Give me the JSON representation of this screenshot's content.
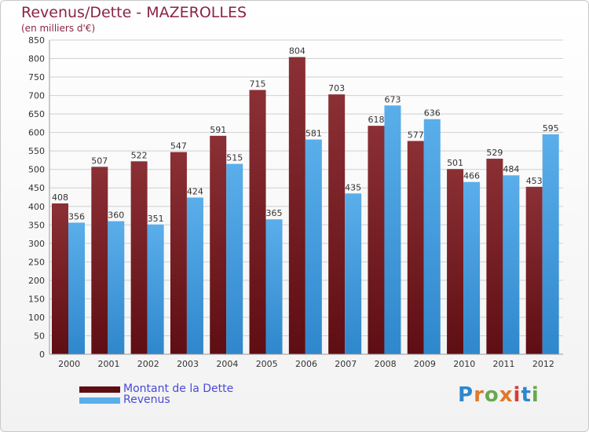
{
  "title": "Revenus/Dette - MAZEROLLES",
  "subtitle": "(en milliers d'€)",
  "brand": "Proxiti",
  "colors": {
    "dette_dark": "#5e0e13",
    "dette_light": "#8b3035",
    "revenus_dark": "#2f87cc",
    "revenus_light": "#5aaeea",
    "grid": "#d0d0d0",
    "axis_text": "#333333",
    "title": "#8a2442",
    "legend_text": "#4a4ad6"
  },
  "chart_data": {
    "type": "bar",
    "title": "Revenus/Dette - MAZEROLLES",
    "subtitle": "(en milliers d'€)",
    "categories": [
      "2000",
      "2001",
      "2002",
      "2003",
      "2004",
      "2005",
      "2006",
      "2007",
      "2008",
      "2009",
      "2010",
      "2011",
      "2012"
    ],
    "series": [
      {
        "name": "Montant de la Dette",
        "values": [
          408,
          507,
          522,
          547,
          591,
          715,
          804,
          703,
          618,
          577,
          501,
          529,
          453
        ]
      },
      {
        "name": "Revenus",
        "values": [
          356,
          360,
          351,
          424,
          515,
          365,
          581,
          435,
          673,
          636,
          466,
          484,
          595
        ]
      }
    ],
    "ylim": [
      0,
      850
    ],
    "yticks": [
      0,
      50,
      100,
      150,
      200,
      250,
      300,
      350,
      400,
      450,
      500,
      550,
      600,
      650,
      700,
      750,
      800,
      850
    ],
    "grid": true,
    "legend_position": "bottom-left"
  }
}
